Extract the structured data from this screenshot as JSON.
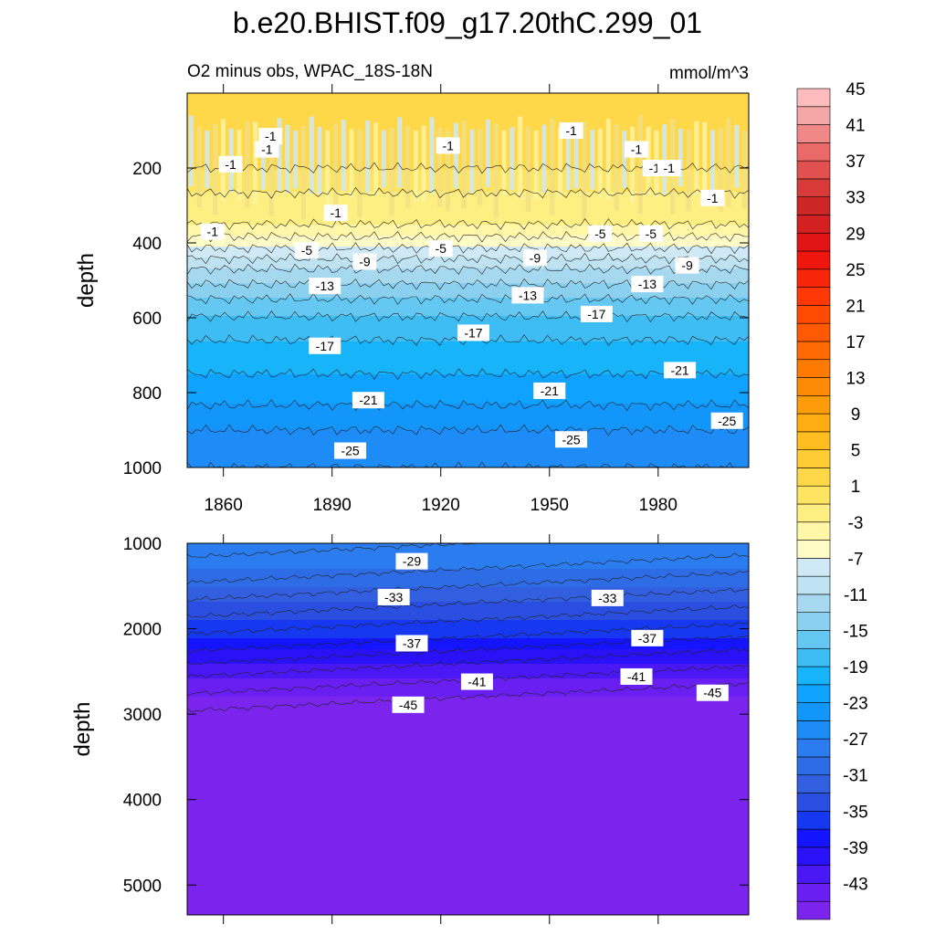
{
  "title": "b.e20.BHIST.f09_g17.20thC.299_01",
  "subtitle_left": "O2 minus obs, WPAC_18S-18N",
  "subtitle_right": "mmol/m^3",
  "colorbar": {
    "colors": [
      "#7b24ed",
      "#6a1ff2",
      "#4a18f5",
      "#2a12f8",
      "#1414ff",
      "#1638f0",
      "#2a4fe0",
      "#325ee0",
      "#2e6ce6",
      "#2a7cef",
      "#1e8cf7",
      "#1396fa",
      "#0fa3ff",
      "#17b4f9",
      "#3dbdf4",
      "#64c8f2",
      "#8bd0ef",
      "#a6d9f0",
      "#bfe3f3",
      "#cfe9f6",
      "#fffbc6",
      "#fff6a8",
      "#ffee82",
      "#ffe462",
      "#ffd84a",
      "#ffcc33",
      "#ffbd1f",
      "#ffad12",
      "#ff9c0a",
      "#ff8a05",
      "#ff7a03",
      "#ff6a02",
      "#ff5a02",
      "#ff4a03",
      "#ff3805",
      "#f7260a",
      "#ee160f",
      "#e01414",
      "#d42020",
      "#cc2626",
      "#d83a3a",
      "#e25050",
      "#ea6a6a",
      "#f08888",
      "#f5a6a6",
      "#ffbcbc"
    ],
    "tick_labels": [
      "-43",
      "-39",
      "-35",
      "-31",
      "-27",
      "-23",
      "-19",
      "-15",
      "-11",
      "-7",
      "-3",
      "1",
      "5",
      "9",
      "13",
      "17",
      "21",
      "25",
      "29",
      "33",
      "37",
      "41",
      "45"
    ]
  },
  "chart_data": [
    {
      "type": "contour",
      "panel": "top",
      "ylabel": "depth",
      "xlim": [
        1850,
        2005
      ],
      "ylim": [
        1000,
        0
      ],
      "x_ticks": [
        "1860",
        "1890",
        "1920",
        "1950",
        "1980"
      ],
      "x_tick_values": [
        1860,
        1890,
        1920,
        1950,
        1980
      ],
      "y_ticks": [
        "200",
        "400",
        "600",
        "800",
        "1000"
      ],
      "y_tick_values": [
        200,
        400,
        600,
        800,
        1000
      ],
      "depth_profile": [
        {
          "depth": 0,
          "value": 1
        },
        {
          "depth": 200,
          "value": 1
        },
        {
          "depth": 300,
          "value": -2
        },
        {
          "depth": 350,
          "value": -3
        },
        {
          "depth": 400,
          "value": -6
        },
        {
          "depth": 470,
          "value": -11
        },
        {
          "depth": 550,
          "value": -15
        },
        {
          "depth": 620,
          "value": -18
        },
        {
          "depth": 700,
          "value": -20
        },
        {
          "depth": 800,
          "value": -22
        },
        {
          "depth": 900,
          "value": -25
        },
        {
          "depth": 1000,
          "value": -27
        }
      ],
      "contour_labels": [
        {
          "label": "-1",
          "x": 1862,
          "y": 190
        },
        {
          "label": "-1",
          "x": 1872,
          "y": 150
        },
        {
          "label": "-1",
          "x": 1922,
          "y": 140
        },
        {
          "label": "-1",
          "x": 1873,
          "y": 115
        },
        {
          "label": "-1",
          "x": 1956,
          "y": 100
        },
        {
          "label": "-1",
          "x": 1974,
          "y": 150
        },
        {
          "label": "-1",
          "x": 1979,
          "y": 200
        },
        {
          "label": "-1",
          "x": 1983,
          "y": 200
        },
        {
          "label": "-1",
          "x": 1995,
          "y": 280
        },
        {
          "label": "-1",
          "x": 1857,
          "y": 370
        },
        {
          "label": "-1",
          "x": 1891,
          "y": 320
        },
        {
          "label": "-5",
          "x": 1883,
          "y": 420
        },
        {
          "label": "-5",
          "x": 1920,
          "y": 415
        },
        {
          "label": "-5",
          "x": 1964,
          "y": 375
        },
        {
          "label": "-5",
          "x": 1978,
          "y": 375
        },
        {
          "label": "-9",
          "x": 1899,
          "y": 450
        },
        {
          "label": "-9",
          "x": 1946,
          "y": 440
        },
        {
          "label": "-9",
          "x": 1988,
          "y": 460
        },
        {
          "label": "-13",
          "x": 1888,
          "y": 515
        },
        {
          "label": "-13",
          "x": 1944,
          "y": 540
        },
        {
          "label": "-13",
          "x": 1977,
          "y": 510
        },
        {
          "label": "-17",
          "x": 1888,
          "y": 675
        },
        {
          "label": "-17",
          "x": 1929,
          "y": 640
        },
        {
          "label": "-17",
          "x": 1963,
          "y": 590
        },
        {
          "label": "-21",
          "x": 1900,
          "y": 820
        },
        {
          "label": "-21",
          "x": 1950,
          "y": 795
        },
        {
          "label": "-21",
          "x": 1986,
          "y": 740
        },
        {
          "label": "-25",
          "x": 1895,
          "y": 955
        },
        {
          "label": "-25",
          "x": 1956,
          "y": 925
        },
        {
          "label": "-25",
          "x": 1999,
          "y": 875
        }
      ]
    },
    {
      "type": "contour",
      "panel": "bottom",
      "ylabel": "depth",
      "xlim": [
        1850,
        2005
      ],
      "ylim": [
        5350,
        1000
      ],
      "y_ticks": [
        "1000",
        "2000",
        "3000",
        "4000",
        "5000"
      ],
      "y_tick_values": [
        1000,
        2000,
        3000,
        4000,
        5000
      ],
      "depth_profile": [
        {
          "depth": 1000,
          "value": -27
        },
        {
          "depth": 1300,
          "value": -29
        },
        {
          "depth": 1700,
          "value": -33
        },
        {
          "depth": 2100,
          "value": -37
        },
        {
          "depth": 2400,
          "value": -41
        },
        {
          "depth": 2800,
          "value": -45
        },
        {
          "depth": 5350,
          "value": -46
        }
      ],
      "contour_labels": [
        {
          "label": "-29",
          "x": 1912,
          "y": 1210
        },
        {
          "label": "-33",
          "x": 1907,
          "y": 1630
        },
        {
          "label": "-33",
          "x": 1966,
          "y": 1640
        },
        {
          "label": "-37",
          "x": 1912,
          "y": 2170
        },
        {
          "label": "-37",
          "x": 1977,
          "y": 2110
        },
        {
          "label": "-41",
          "x": 1930,
          "y": 2620
        },
        {
          "label": "-41",
          "x": 1974,
          "y": 2560
        },
        {
          "label": "-45",
          "x": 1911,
          "y": 2890
        },
        {
          "label": "-45",
          "x": 1995,
          "y": 2750
        }
      ]
    }
  ]
}
